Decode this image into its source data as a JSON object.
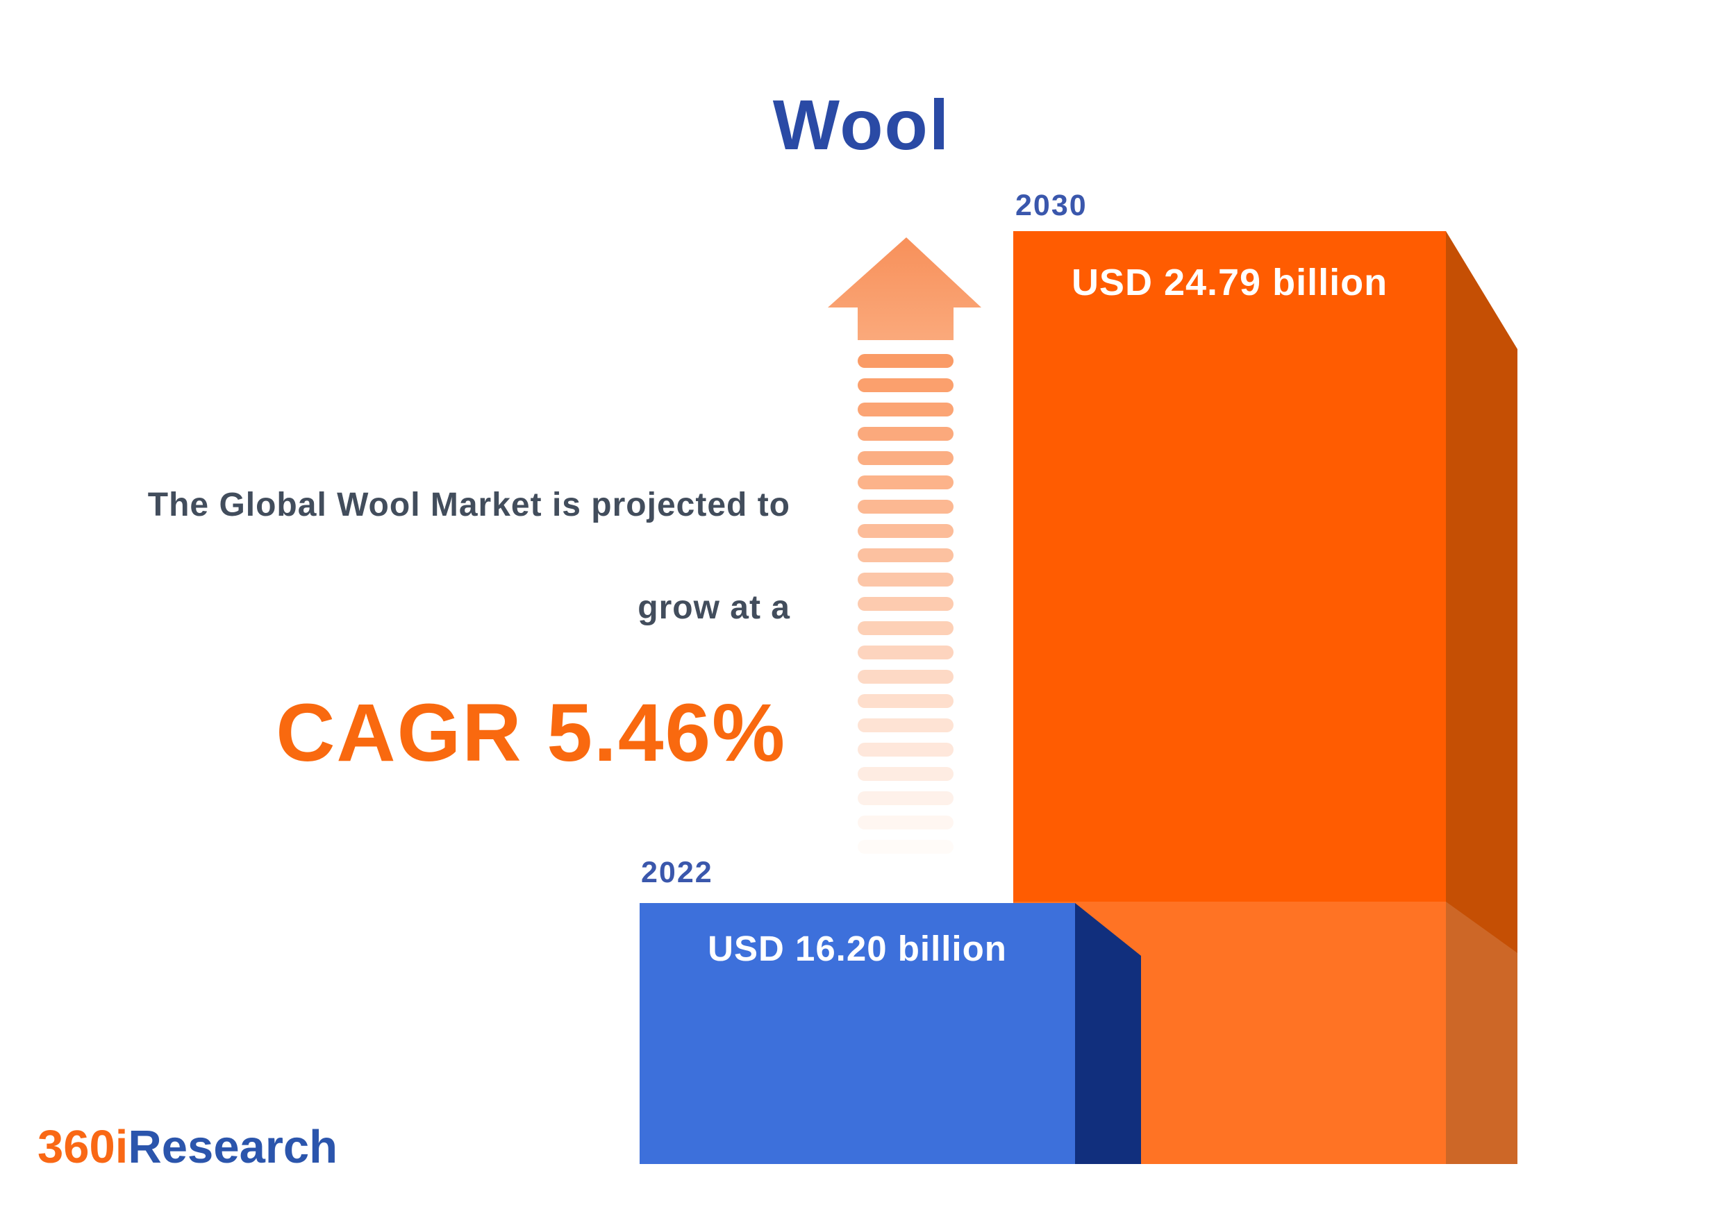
{
  "title": "Wool",
  "description": {
    "line1": "The Global Wool Market is projected to",
    "line2": "grow at a",
    "cagr": "CAGR 5.46%"
  },
  "chart_data": {
    "type": "bar",
    "title": "Wool",
    "categories": [
      "2022",
      "2030"
    ],
    "values": [
      16.2,
      24.79
    ],
    "unit": "USD billion",
    "value_labels": [
      "USD 16.20 billion",
      "USD 24.79 billion"
    ],
    "annotation": "The Global Wool Market is projected to grow at a CAGR 5.46%",
    "cagr_percent": 5.46,
    "bar_colors": [
      "#3D70DB",
      "#FF5C01"
    ],
    "legend": "none",
    "axes": "none"
  },
  "colors": {
    "title": "#2A4AA5",
    "year_label": "#3A57AC",
    "description": "#424D5C",
    "cagr": "#F9690F",
    "bar_2022_front": "#3D70DB",
    "bar_2022_side": "#112F7D",
    "bar_2030_front": "#FF5C01",
    "bar_2030_side": "#C54F04",
    "overlay_band": "rgba(255,255,255,0.14)",
    "arrow_head_top": "#F8905A",
    "arrow_head_bottom": "#FAA97B",
    "logo_prefix": "#F96815",
    "logo_suffix": "#2B55AC"
  },
  "logo": {
    "prefix": "360i",
    "suffix": "Research"
  },
  "arrow": {
    "stripe_count": 21,
    "stripe_color": "250,144,85"
  }
}
